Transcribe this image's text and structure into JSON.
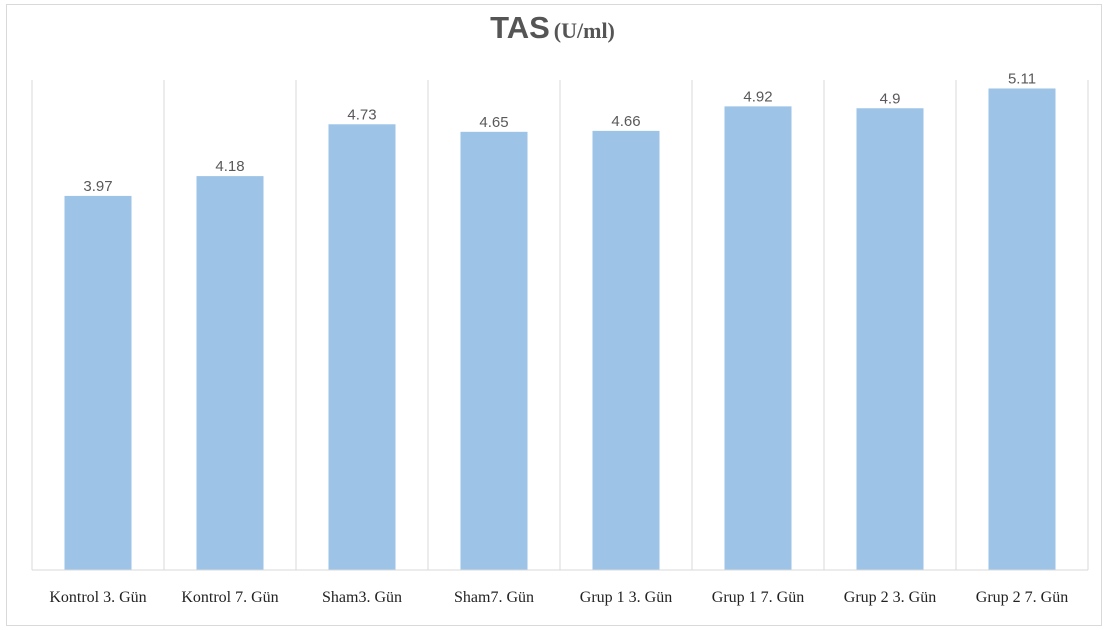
{
  "chart_data": {
    "type": "bar",
    "title": "TAS",
    "title_unit": "(U/ml)",
    "xlabel": "",
    "ylabel": "",
    "categories": [
      "Kontrol 3. Gün",
      "Kontrol 7. Gün",
      "Sham3. Gün",
      "Sham7. Gün",
      "Grup 1 3. Gün",
      "Grup 1 7. Gün",
      "Grup 2 3. Gün",
      "Grup 2 7. Gün"
    ],
    "values": [
      3.97,
      4.18,
      4.73,
      4.65,
      4.66,
      4.92,
      4.9,
      5.11
    ],
    "data_labels": [
      "3.97",
      "4.18",
      "4.73",
      "4.65",
      "4.66",
      "4.92",
      "4.9",
      "5.11"
    ],
    "ylim": [
      0,
      5.2
    ],
    "grid": "vertical",
    "legend": "none",
    "bar_color": "#9dc3e6",
    "gridline_color": "#d9d9d9"
  }
}
